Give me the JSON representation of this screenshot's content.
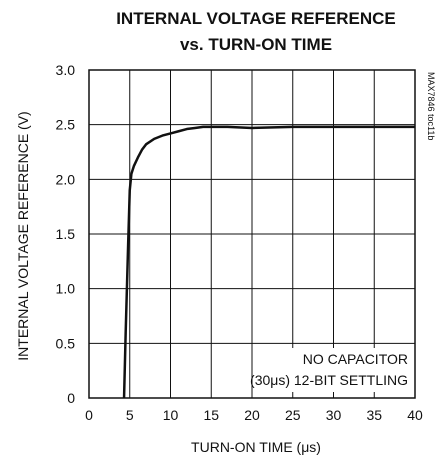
{
  "chart_data": {
    "type": "line",
    "title_line1": "INTERNAL VOLTAGE REFERENCE",
    "title_line2": "vs. TURN-ON TIME",
    "xlabel": "TURN-ON TIME (μs)",
    "ylabel": "INTERNAL VOLTAGE REFERENCE (V)",
    "xlim": [
      0,
      40
    ],
    "ylim": [
      0,
      3.0
    ],
    "xticks": [
      0,
      5,
      10,
      15,
      20,
      25,
      30,
      35,
      40
    ],
    "xtick_labels": [
      "0",
      "5",
      "10",
      "15",
      "20",
      "25",
      "30",
      "35",
      "40"
    ],
    "yticks": [
      0,
      0.5,
      1.0,
      1.5,
      2.0,
      2.5,
      3.0
    ],
    "ytick_labels": [
      "0",
      "0.5",
      "1.0",
      "1.5",
      "2.0",
      "2.5",
      "3.0"
    ],
    "grid": true,
    "annotation_line1": "NO CAPACITOR",
    "annotation_line2": "(30μs) 12-BIT SETTLING",
    "figure_code": "MAX7846 toc11b",
    "series": [
      {
        "color": "#111111",
        "x": [
          4.3,
          4.5,
          4.8,
          5.0,
          5.2,
          5.5,
          6.0,
          6.5,
          7.0,
          8.0,
          9.0,
          10.0,
          11.0,
          12.0,
          13.0,
          14.0,
          15.0,
          17.0,
          20.0,
          25.0,
          30.0,
          35.0,
          40.0
        ],
        "y": [
          0.0,
          0.6,
          1.4,
          1.9,
          2.05,
          2.12,
          2.2,
          2.27,
          2.32,
          2.37,
          2.4,
          2.42,
          2.44,
          2.46,
          2.47,
          2.48,
          2.48,
          2.48,
          2.47,
          2.48,
          2.48,
          2.48,
          2.48
        ]
      }
    ]
  }
}
